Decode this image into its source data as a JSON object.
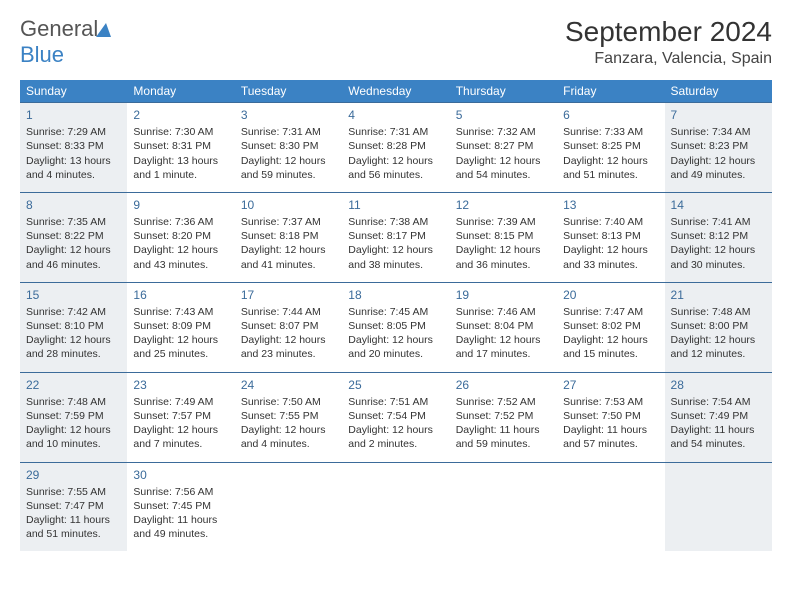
{
  "logo": {
    "part1": "General",
    "part2": "Blue"
  },
  "title": "September 2024",
  "location": "Fanzara, Valencia, Spain",
  "colors": {
    "header_bg": "#3b82c4",
    "header_text": "#ffffff",
    "border": "#3b6b9a",
    "shaded_bg": "#eceff2",
    "daynum": "#3b6b9a",
    "body_text": "#333333"
  },
  "day_names": [
    "Sunday",
    "Monday",
    "Tuesday",
    "Wednesday",
    "Thursday",
    "Friday",
    "Saturday"
  ],
  "weeks": [
    [
      {
        "n": "1",
        "sr": "Sunrise: 7:29 AM",
        "ss": "Sunset: 8:33 PM",
        "dl": "Daylight: 13 hours and 4 minutes.",
        "shade": true
      },
      {
        "n": "2",
        "sr": "Sunrise: 7:30 AM",
        "ss": "Sunset: 8:31 PM",
        "dl": "Daylight: 13 hours and 1 minute.",
        "shade": false
      },
      {
        "n": "3",
        "sr": "Sunrise: 7:31 AM",
        "ss": "Sunset: 8:30 PM",
        "dl": "Daylight: 12 hours and 59 minutes.",
        "shade": false
      },
      {
        "n": "4",
        "sr": "Sunrise: 7:31 AM",
        "ss": "Sunset: 8:28 PM",
        "dl": "Daylight: 12 hours and 56 minutes.",
        "shade": false
      },
      {
        "n": "5",
        "sr": "Sunrise: 7:32 AM",
        "ss": "Sunset: 8:27 PM",
        "dl": "Daylight: 12 hours and 54 minutes.",
        "shade": false
      },
      {
        "n": "6",
        "sr": "Sunrise: 7:33 AM",
        "ss": "Sunset: 8:25 PM",
        "dl": "Daylight: 12 hours and 51 minutes.",
        "shade": false
      },
      {
        "n": "7",
        "sr": "Sunrise: 7:34 AM",
        "ss": "Sunset: 8:23 PM",
        "dl": "Daylight: 12 hours and 49 minutes.",
        "shade": true
      }
    ],
    [
      {
        "n": "8",
        "sr": "Sunrise: 7:35 AM",
        "ss": "Sunset: 8:22 PM",
        "dl": "Daylight: 12 hours and 46 minutes.",
        "shade": true
      },
      {
        "n": "9",
        "sr": "Sunrise: 7:36 AM",
        "ss": "Sunset: 8:20 PM",
        "dl": "Daylight: 12 hours and 43 minutes.",
        "shade": false
      },
      {
        "n": "10",
        "sr": "Sunrise: 7:37 AM",
        "ss": "Sunset: 8:18 PM",
        "dl": "Daylight: 12 hours and 41 minutes.",
        "shade": false
      },
      {
        "n": "11",
        "sr": "Sunrise: 7:38 AM",
        "ss": "Sunset: 8:17 PM",
        "dl": "Daylight: 12 hours and 38 minutes.",
        "shade": false
      },
      {
        "n": "12",
        "sr": "Sunrise: 7:39 AM",
        "ss": "Sunset: 8:15 PM",
        "dl": "Daylight: 12 hours and 36 minutes.",
        "shade": false
      },
      {
        "n": "13",
        "sr": "Sunrise: 7:40 AM",
        "ss": "Sunset: 8:13 PM",
        "dl": "Daylight: 12 hours and 33 minutes.",
        "shade": false
      },
      {
        "n": "14",
        "sr": "Sunrise: 7:41 AM",
        "ss": "Sunset: 8:12 PM",
        "dl": "Daylight: 12 hours and 30 minutes.",
        "shade": true
      }
    ],
    [
      {
        "n": "15",
        "sr": "Sunrise: 7:42 AM",
        "ss": "Sunset: 8:10 PM",
        "dl": "Daylight: 12 hours and 28 minutes.",
        "shade": true
      },
      {
        "n": "16",
        "sr": "Sunrise: 7:43 AM",
        "ss": "Sunset: 8:09 PM",
        "dl": "Daylight: 12 hours and 25 minutes.",
        "shade": false
      },
      {
        "n": "17",
        "sr": "Sunrise: 7:44 AM",
        "ss": "Sunset: 8:07 PM",
        "dl": "Daylight: 12 hours and 23 minutes.",
        "shade": false
      },
      {
        "n": "18",
        "sr": "Sunrise: 7:45 AM",
        "ss": "Sunset: 8:05 PM",
        "dl": "Daylight: 12 hours and 20 minutes.",
        "shade": false
      },
      {
        "n": "19",
        "sr": "Sunrise: 7:46 AM",
        "ss": "Sunset: 8:04 PM",
        "dl": "Daylight: 12 hours and 17 minutes.",
        "shade": false
      },
      {
        "n": "20",
        "sr": "Sunrise: 7:47 AM",
        "ss": "Sunset: 8:02 PM",
        "dl": "Daylight: 12 hours and 15 minutes.",
        "shade": false
      },
      {
        "n": "21",
        "sr": "Sunrise: 7:48 AM",
        "ss": "Sunset: 8:00 PM",
        "dl": "Daylight: 12 hours and 12 minutes.",
        "shade": true
      }
    ],
    [
      {
        "n": "22",
        "sr": "Sunrise: 7:48 AM",
        "ss": "Sunset: 7:59 PM",
        "dl": "Daylight: 12 hours and 10 minutes.",
        "shade": true
      },
      {
        "n": "23",
        "sr": "Sunrise: 7:49 AM",
        "ss": "Sunset: 7:57 PM",
        "dl": "Daylight: 12 hours and 7 minutes.",
        "shade": false
      },
      {
        "n": "24",
        "sr": "Sunrise: 7:50 AM",
        "ss": "Sunset: 7:55 PM",
        "dl": "Daylight: 12 hours and 4 minutes.",
        "shade": false
      },
      {
        "n": "25",
        "sr": "Sunrise: 7:51 AM",
        "ss": "Sunset: 7:54 PM",
        "dl": "Daylight: 12 hours and 2 minutes.",
        "shade": false
      },
      {
        "n": "26",
        "sr": "Sunrise: 7:52 AM",
        "ss": "Sunset: 7:52 PM",
        "dl": "Daylight: 11 hours and 59 minutes.",
        "shade": false
      },
      {
        "n": "27",
        "sr": "Sunrise: 7:53 AM",
        "ss": "Sunset: 7:50 PM",
        "dl": "Daylight: 11 hours and 57 minutes.",
        "shade": false
      },
      {
        "n": "28",
        "sr": "Sunrise: 7:54 AM",
        "ss": "Sunset: 7:49 PM",
        "dl": "Daylight: 11 hours and 54 minutes.",
        "shade": true
      }
    ],
    [
      {
        "n": "29",
        "sr": "Sunrise: 7:55 AM",
        "ss": "Sunset: 7:47 PM",
        "dl": "Daylight: 11 hours and 51 minutes.",
        "shade": true
      },
      {
        "n": "30",
        "sr": "Sunrise: 7:56 AM",
        "ss": "Sunset: 7:45 PM",
        "dl": "Daylight: 11 hours and 49 minutes.",
        "shade": false
      },
      {
        "n": "",
        "sr": "",
        "ss": "",
        "dl": "",
        "shade": false
      },
      {
        "n": "",
        "sr": "",
        "ss": "",
        "dl": "",
        "shade": false
      },
      {
        "n": "",
        "sr": "",
        "ss": "",
        "dl": "",
        "shade": false
      },
      {
        "n": "",
        "sr": "",
        "ss": "",
        "dl": "",
        "shade": false
      },
      {
        "n": "",
        "sr": "",
        "ss": "",
        "dl": "",
        "shade": true
      }
    ]
  ]
}
